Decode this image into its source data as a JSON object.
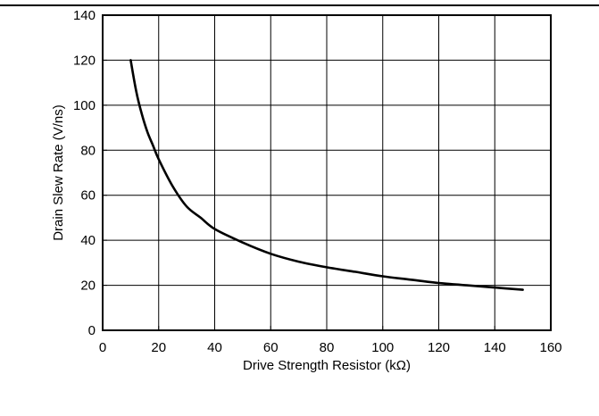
{
  "chart_data": {
    "type": "line",
    "xlabel": "Drive Strength Resistor (kΩ)",
    "ylabel": "Drain Slew Rate (V/ns)",
    "xlim": [
      0,
      160
    ],
    "ylim": [
      0,
      140
    ],
    "xticks": [
      "0",
      "20",
      "40",
      "60",
      "80",
      "100",
      "120",
      "140",
      "160"
    ],
    "yticks": [
      "0",
      "20",
      "40",
      "60",
      "80",
      "100",
      "120",
      "140"
    ],
    "grid": true,
    "series": [
      {
        "x": [
          10,
          12,
          14,
          16,
          18,
          20,
          25,
          30,
          35,
          40,
          50,
          60,
          70,
          80,
          90,
          100,
          110,
          120,
          130,
          140,
          150
        ],
        "y": [
          120,
          106,
          96,
          88,
          82,
          76,
          64,
          55,
          50,
          45,
          39,
          34,
          30.5,
          28,
          26,
          24,
          22.5,
          21,
          20,
          19,
          18
        ]
      }
    ],
    "colors": {
      "line": "#000000",
      "grid": "#000000"
    }
  }
}
